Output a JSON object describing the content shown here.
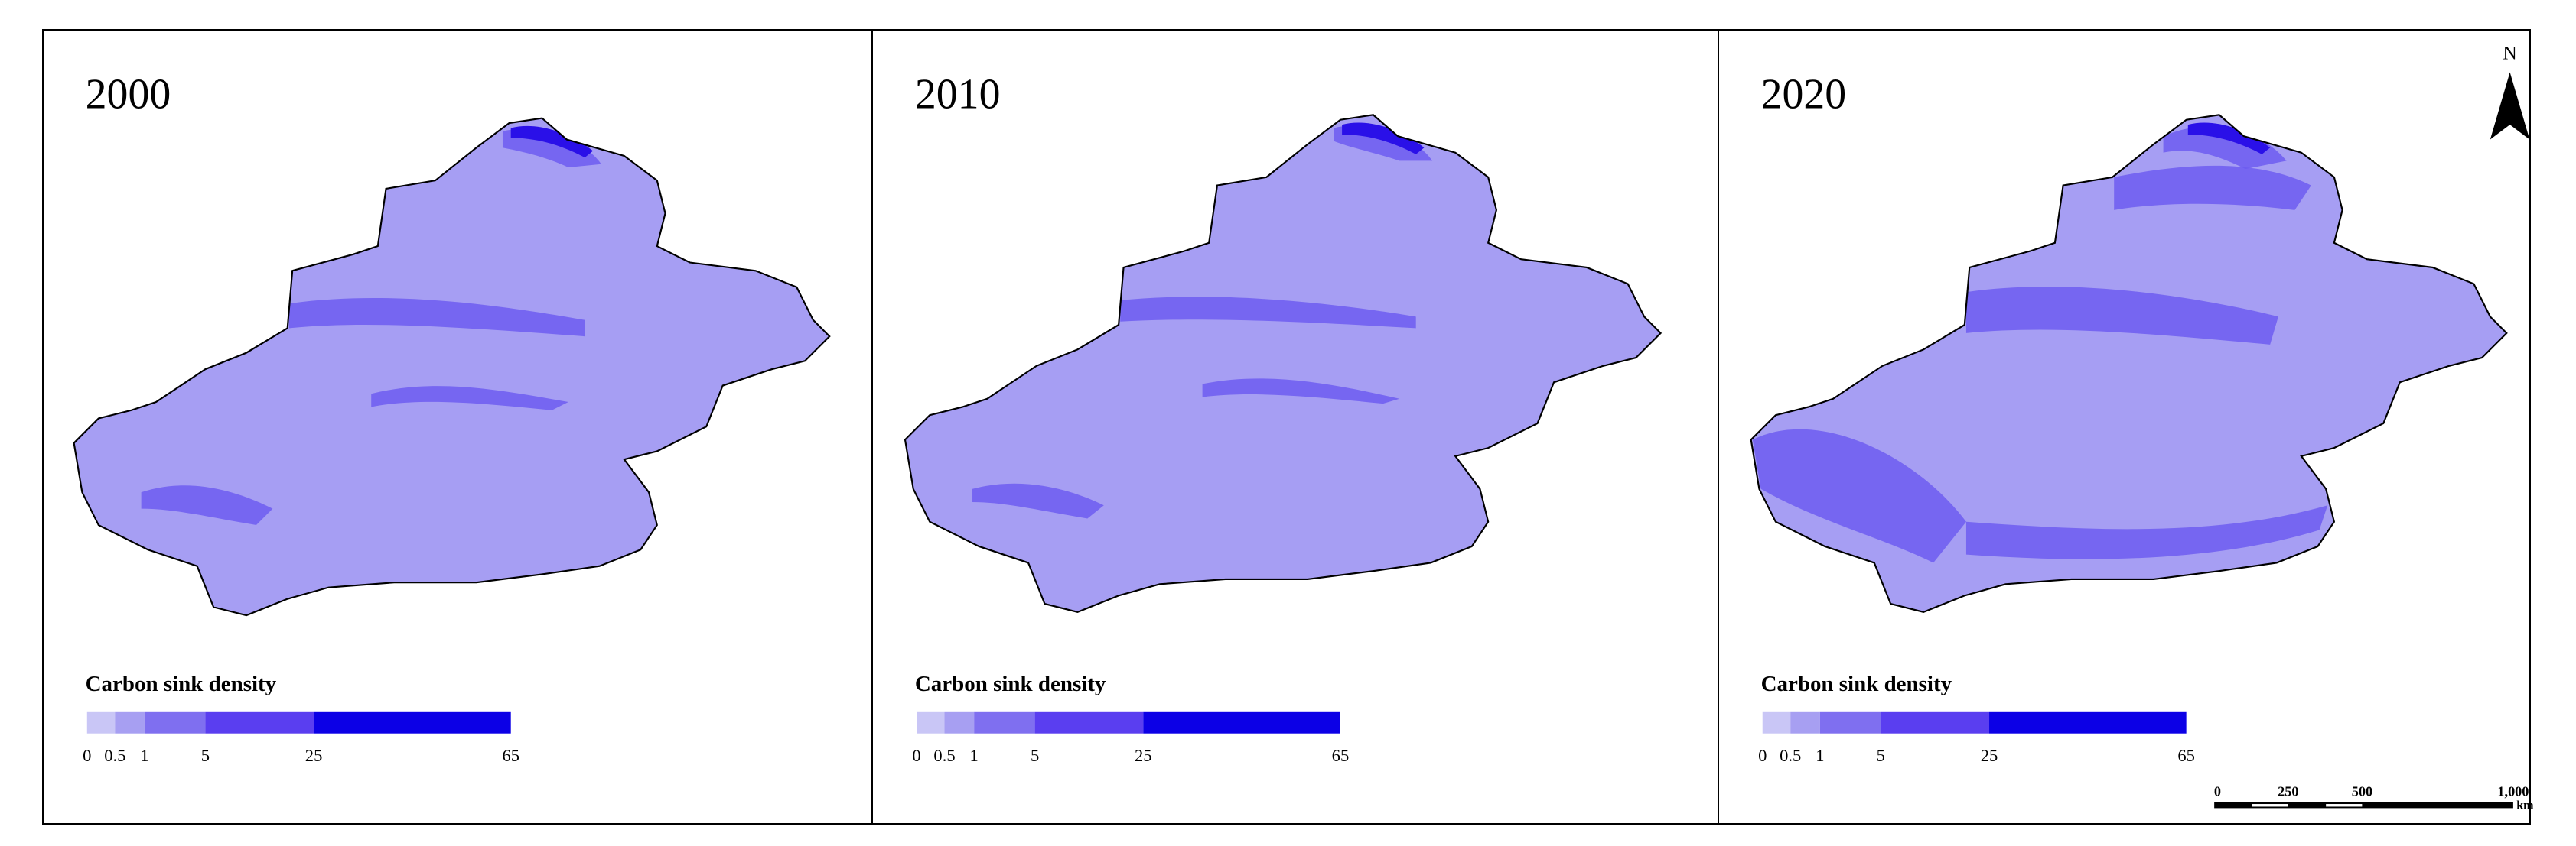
{
  "panels": [
    {
      "year": "2000",
      "legend": {
        "title": "Carbon sink density",
        "labels": [
          "0",
          "0.5",
          "1",
          "5",
          "25",
          "65"
        ],
        "colors": [
          "#c9c6f6",
          "#a79ff2",
          "#7f6ff0",
          "#5a3ef0",
          "#0c00e6"
        ]
      }
    },
    {
      "year": "2010",
      "legend": {
        "title": "Carbon sink density",
        "labels": [
          "0",
          "0.5",
          "1",
          "5",
          "25",
          "65"
        ],
        "colors": [
          "#c9c6f6",
          "#a79ff2",
          "#7f6ff0",
          "#5a3ef0",
          "#0c00e6"
        ]
      }
    },
    {
      "year": "2020",
      "legend": {
        "title": "Carbon sink density",
        "labels": [
          "0",
          "0.5",
          "1",
          "5",
          "25",
          "65"
        ],
        "colors": [
          "#c9c6f6",
          "#a79ff2",
          "#7f6ff0",
          "#5a3ef0",
          "#0c00e6"
        ]
      }
    }
  ],
  "north": "N",
  "scale_bar": {
    "labels": [
      "0",
      "250",
      "500",
      "1,000"
    ],
    "unit": "km"
  }
}
